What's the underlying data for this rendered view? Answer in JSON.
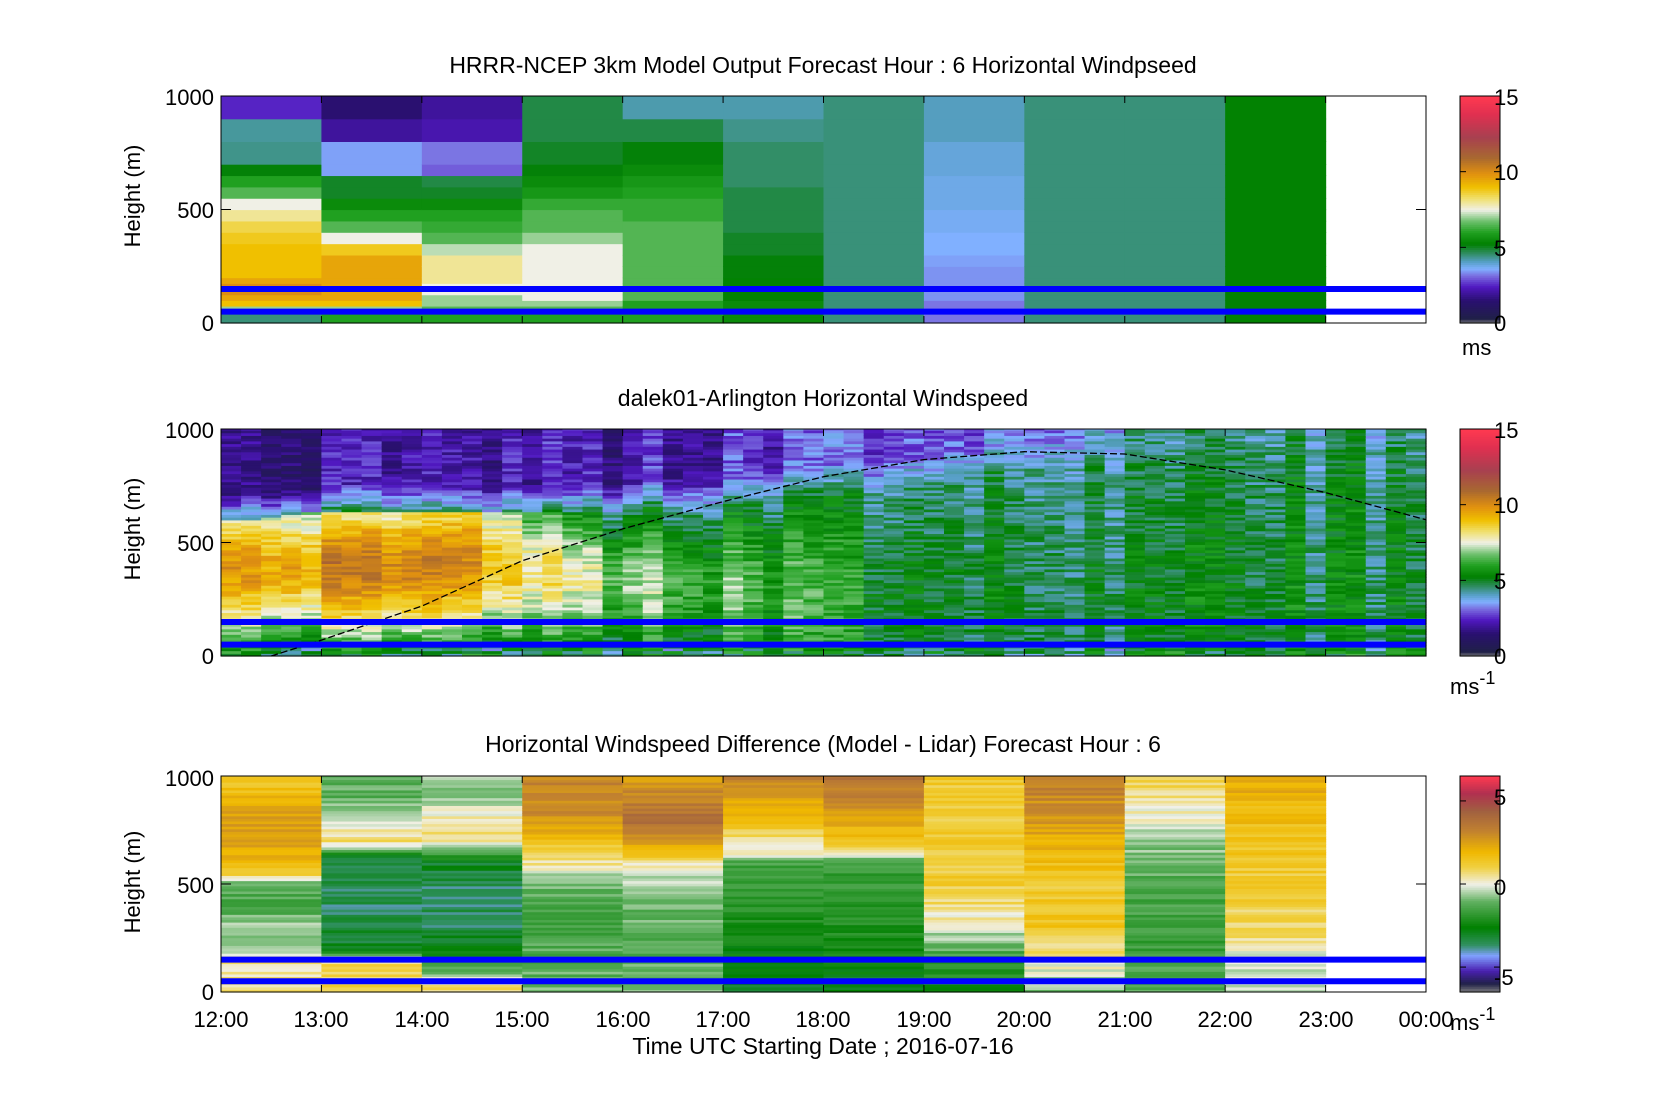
{
  "figure": {
    "xlabel": "Time UTC  Starting Date ; 2016-07-16",
    "x_ticks": [
      "12:00",
      "13:00",
      "14:00",
      "15:00",
      "16:00",
      "17:00",
      "18:00",
      "19:00",
      "20:00",
      "21:00",
      "22:00",
      "23:00",
      "00:00"
    ]
  },
  "colors": {
    "reference_lines": "#0000ff",
    "axes": "#000000",
    "background": "#ffffff"
  },
  "chart_data": [
    {
      "type": "heatmap",
      "title": "HRRR-NCEP 3km Model Output   Forecast Hour : 6 Horizontal Windpseed",
      "ylabel": "Height (m)",
      "xlabel": "",
      "x_ticks": [
        "12:00",
        "13:00",
        "14:00",
        "15:00",
        "16:00",
        "17:00",
        "18:00",
        "19:00",
        "20:00",
        "21:00",
        "22:00",
        "23:00",
        "00:00"
      ],
      "ylim": [
        0,
        1000
      ],
      "y_ticks": [
        "0",
        "500",
        "1000"
      ],
      "colorbar": {
        "ticks": [
          "0",
          "5",
          "10",
          "15"
        ],
        "range": [
          0,
          15
        ],
        "unit": "ms",
        "unit_sup": ""
      },
      "reference_lines_m": [
        150,
        50
      ],
      "height_levels_m": [
        0,
        25,
        50,
        75,
        100,
        125,
        150,
        175,
        200,
        250,
        300,
        350,
        400,
        450,
        500,
        550,
        600,
        650,
        700,
        800,
        900,
        1000
      ],
      "columns": [
        {
          "start": "12:00",
          "end": "13:00",
          "speeds": [
            4.5,
            4.5,
            7,
            9,
            9.5,
            10,
            10,
            9.5,
            9,
            9,
            9,
            8.8,
            8.5,
            8,
            7.5,
            6.5,
            6,
            5.2,
            4.4,
            4.3,
            2.5,
            2.8
          ]
        },
        {
          "start": "13:00",
          "end": "14:00",
          "speeds": [
            6,
            6,
            7,
            9,
            9.5,
            9.5,
            9.5,
            9.5,
            9.5,
            9.5,
            8.8,
            7.5,
            6.5,
            6,
            5.5,
            5,
            5,
            3.5,
            3.5,
            2,
            1.5,
            1.2
          ]
        },
        {
          "start": "14:00",
          "end": "15:00",
          "speeds": [
            6,
            6,
            6.5,
            7,
            7,
            7.5,
            7.5,
            8,
            8,
            8,
            7.2,
            6.5,
            6.2,
            6,
            5.5,
            5,
            4.8,
            3,
            3.2,
            2.2,
            2,
            1.8
          ]
        },
        {
          "start": "15:00",
          "end": "16:00",
          "speeds": [
            6,
            6,
            6.5,
            7,
            7.5,
            7.5,
            7.5,
            7.5,
            7.5,
            7.5,
            7.5,
            7,
            6.5,
            6.5,
            6.2,
            5.8,
            5.5,
            5.2,
            5,
            4.8,
            4.8,
            4.8
          ]
        },
        {
          "start": "16:00",
          "end": "17:00",
          "speeds": [
            6,
            6,
            6,
            6,
            6.5,
            6.5,
            6.5,
            6.5,
            6.5,
            6.5,
            6.5,
            6.5,
            6.5,
            6.2,
            6.2,
            6,
            5.8,
            5.5,
            5.2,
            4.8,
            4.2,
            4.2
          ]
        },
        {
          "start": "17:00",
          "end": "18:00",
          "speeds": [
            5.5,
            5.5,
            5.5,
            5.5,
            5.3,
            5.3,
            5.3,
            5.3,
            5.2,
            5.2,
            5,
            5,
            4.8,
            4.8,
            4.8,
            4.8,
            4.6,
            4.6,
            4.6,
            4.4,
            4.2,
            4.2
          ]
        },
        {
          "start": "18:00",
          "end": "19:00",
          "speeds": [
            4.5,
            4.5,
            4.5,
            4.5,
            4.5,
            4.5,
            4.5,
            4.5,
            4.5,
            4.5,
            4.5,
            4.5,
            4.5,
            4.5,
            4.5,
            4.5,
            4.5,
            4.5,
            4.5,
            4.5,
            4.5,
            4.5
          ]
        },
        {
          "start": "19:00",
          "end": "20:00",
          "speeds": [
            3.2,
            3.2,
            3.2,
            3.2,
            3.4,
            3.4,
            3.4,
            3.4,
            3.4,
            3.5,
            3.6,
            3.6,
            3.7,
            3.7,
            3.8,
            3.8,
            3.8,
            3.9,
            3.9,
            4.1,
            4.1,
            4.1
          ]
        },
        {
          "start": "20:00",
          "end": "21:00",
          "speeds": [
            4.5,
            4.5,
            4.5,
            4.5,
            4.5,
            4.5,
            4.5,
            4.5,
            4.5,
            4.5,
            4.5,
            4.5,
            4.5,
            4.5,
            4.5,
            4.5,
            4.5,
            4.5,
            4.5,
            4.5,
            4.5,
            4.5
          ]
        },
        {
          "start": "21:00",
          "end": "22:00",
          "speeds": [
            4.5,
            4.5,
            4.5,
            4.5,
            4.5,
            4.5,
            4.5,
            4.5,
            4.5,
            4.5,
            4.5,
            4.5,
            4.5,
            4.5,
            4.5,
            4.5,
            4.5,
            4.5,
            4.5,
            4.5,
            4.5,
            4.5
          ]
        },
        {
          "start": "22:00",
          "end": "23:00",
          "speeds": [
            5.3,
            5.3,
            5.3,
            5.3,
            5.3,
            5.3,
            5.3,
            5.3,
            5.3,
            5.3,
            5.3,
            5.3,
            5.3,
            5.3,
            5.3,
            5.3,
            5.3,
            5.3,
            5.3,
            5.3,
            5.3,
            5.3
          ]
        }
      ]
    },
    {
      "type": "heatmap",
      "title": "dalek01-Arlington  Horizontal Windspeed",
      "ylabel": "Height (m)",
      "xlabel": "",
      "x_ticks": [
        "12:00",
        "13:00",
        "14:00",
        "15:00",
        "16:00",
        "17:00",
        "18:00",
        "19:00",
        "20:00",
        "21:00",
        "22:00",
        "23:00",
        "00:00"
      ],
      "ylim": [
        0,
        1000
      ],
      "y_ticks": [
        "0",
        "500",
        "1000"
      ],
      "colorbar": {
        "ticks": [
          "0",
          "5",
          "10",
          "15"
        ],
        "range": [
          0,
          15
        ],
        "unit": "ms",
        "unit_sup": "-1"
      },
      "reference_lines_m": [
        150,
        50
      ],
      "data_end_hour": 23.85,
      "column_width_h": 0.2,
      "row_height_m": 12,
      "jet_core_m": [
        [
          12,
          390
        ],
        [
          13,
          390
        ],
        [
          14,
          400
        ],
        [
          14.5,
          430
        ],
        [
          15,
          380
        ],
        [
          16,
          320
        ],
        [
          17,
          300
        ],
        [
          18,
          260
        ],
        [
          19,
          230
        ],
        [
          20,
          210
        ],
        [
          21,
          200
        ],
        [
          22,
          210
        ],
        [
          23,
          220
        ],
        [
          24,
          230
        ]
      ],
      "jet_peak_ms": [
        [
          12,
          9.5
        ],
        [
          13,
          10
        ],
        [
          14,
          10
        ],
        [
          14.5,
          10
        ],
        [
          15,
          8.2
        ],
        [
          16,
          7
        ],
        [
          17,
          6.5
        ],
        [
          18,
          5.8
        ],
        [
          19,
          5.2
        ],
        [
          20,
          5
        ],
        [
          21,
          5
        ],
        [
          22,
          5
        ],
        [
          23,
          5
        ],
        [
          24,
          5
        ]
      ],
      "top_of_mixed_layer_m": [
        [
          12,
          590
        ],
        [
          13,
          640
        ],
        [
          14,
          640
        ],
        [
          15,
          630
        ],
        [
          16,
          650
        ],
        [
          17,
          680
        ],
        [
          18,
          720
        ],
        [
          19,
          780
        ],
        [
          20,
          830
        ],
        [
          21,
          900
        ],
        [
          22,
          920
        ],
        [
          23,
          930
        ],
        [
          24,
          930
        ]
      ],
      "aloft_ms": [
        [
          12,
          1.6
        ],
        [
          13,
          1.8
        ],
        [
          14,
          2
        ],
        [
          15,
          2
        ],
        [
          16,
          2.2
        ],
        [
          17,
          2.4
        ],
        [
          18,
          2.6
        ],
        [
          19,
          3
        ],
        [
          20,
          3.3
        ],
        [
          21,
          4
        ],
        [
          22,
          4.3
        ],
        [
          23,
          4.5
        ],
        [
          24,
          4.5
        ]
      ],
      "boundary_layer_curve": [
        [
          12.5,
          0
        ],
        [
          13,
          70
        ],
        [
          14,
          220
        ],
        [
          15,
          420
        ],
        [
          16,
          560
        ],
        [
          17,
          680
        ],
        [
          18,
          790
        ],
        [
          19,
          865
        ],
        [
          20,
          900
        ],
        [
          21,
          890
        ],
        [
          22,
          820
        ],
        [
          23,
          720
        ],
        [
          24,
          600
        ]
      ]
    },
    {
      "type": "heatmap",
      "title": "Horizontal Windspeed Difference (Model - Lidar) Forecast Hour : 6",
      "ylabel": "Height (m)",
      "xlabel": "Time UTC  Starting Date ; 2016-07-16",
      "x_ticks": [
        "12:00",
        "13:00",
        "14:00",
        "15:00",
        "16:00",
        "17:00",
        "18:00",
        "19:00",
        "20:00",
        "21:00",
        "22:00",
        "23:00",
        "00:00"
      ],
      "ylim": [
        0,
        1000
      ],
      "y_ticks": [
        "0",
        "500",
        "1000"
      ],
      "colorbar": {
        "ticks": [
          "-5",
          "0",
          "5"
        ],
        "range": [
          -6.5,
          6.5
        ],
        "unit": "ms",
        "unit_sup": "-1"
      },
      "reference_lines_m": [
        150,
        50
      ],
      "row_height_m": 12,
      "columns": [
        {
          "start": "12:00",
          "end": "13:00",
          "anchors": [
            [
              0,
              0.5
            ],
            [
              120,
              0.5
            ],
            [
              150,
              0.8
            ],
            [
              200,
              -0.5
            ],
            [
              300,
              -0.5
            ],
            [
              400,
              -1.5
            ],
            [
              500,
              -1.2
            ],
            [
              550,
              1.2
            ],
            [
              700,
              2.8
            ],
            [
              850,
              2.2
            ],
            [
              1000,
              1.3
            ]
          ]
        },
        {
          "start": "13:00",
          "end": "14:00",
          "anchors": [
            [
              0,
              1
            ],
            [
              150,
              0.8
            ],
            [
              200,
              -3
            ],
            [
              350,
              -3.5
            ],
            [
              500,
              -3.5
            ],
            [
              620,
              -3.2
            ],
            [
              700,
              0.8
            ],
            [
              800,
              -0.3
            ],
            [
              900,
              -1.2
            ],
            [
              1000,
              -1
            ]
          ]
        },
        {
          "start": "14:00",
          "end": "15:00",
          "anchors": [
            [
              0,
              1
            ],
            [
              150,
              -2
            ],
            [
              300,
              -3.5
            ],
            [
              500,
              -3.5
            ],
            [
              600,
              -3
            ],
            [
              700,
              0.5
            ],
            [
              800,
              0.5
            ],
            [
              900,
              -0.6
            ],
            [
              1000,
              -0.6
            ]
          ]
        },
        {
          "start": "15:00",
          "end": "16:00",
          "anchors": [
            [
              0,
              -1
            ],
            [
              150,
              -1.2
            ],
            [
              300,
              -1.5
            ],
            [
              500,
              -1
            ],
            [
              600,
              0.5
            ],
            [
              700,
              1.5
            ],
            [
              800,
              2.8
            ],
            [
              1000,
              3.1
            ]
          ]
        },
        {
          "start": "16:00",
          "end": "17:00",
          "anchors": [
            [
              0,
              -1
            ],
            [
              200,
              -1.2
            ],
            [
              400,
              -1
            ],
            [
              500,
              -0.6
            ],
            [
              600,
              0.5
            ],
            [
              700,
              3
            ],
            [
              800,
              4
            ],
            [
              900,
              3.2
            ],
            [
              1000,
              2.3
            ]
          ]
        },
        {
          "start": "17:00",
          "end": "18:00",
          "anchors": [
            [
              0,
              -3
            ],
            [
              300,
              -2.3
            ],
            [
              600,
              -1.5
            ],
            [
              650,
              0.2
            ],
            [
              750,
              1
            ],
            [
              850,
              2.2
            ],
            [
              1000,
              3.2
            ]
          ]
        },
        {
          "start": "18:00",
          "end": "19:00",
          "anchors": [
            [
              0,
              -3
            ],
            [
              200,
              -2.3
            ],
            [
              400,
              -2
            ],
            [
              600,
              -1.5
            ],
            [
              700,
              1.5
            ],
            [
              850,
              2.8
            ],
            [
              1000,
              3.8
            ]
          ]
        },
        {
          "start": "19:00",
          "end": "20:00",
          "anchors": [
            [
              0,
              -2.5
            ],
            [
              150,
              -1.8
            ],
            [
              250,
              -0.6
            ],
            [
              350,
              0.3
            ],
            [
              500,
              1.2
            ],
            [
              700,
              1.3
            ],
            [
              900,
              1.2
            ],
            [
              1000,
              1.3
            ]
          ]
        },
        {
          "start": "20:00",
          "end": "21:00",
          "anchors": [
            [
              0,
              -0.8
            ],
            [
              150,
              0.3
            ],
            [
              300,
              1.5
            ],
            [
              500,
              1.3
            ],
            [
              700,
              2.2
            ],
            [
              900,
              3
            ],
            [
              1000,
              3.3
            ]
          ]
        },
        {
          "start": "21:00",
          "end": "22:00",
          "anchors": [
            [
              0,
              -1.2
            ],
            [
              200,
              -1.6
            ],
            [
              500,
              -1.3
            ],
            [
              700,
              -0.6
            ],
            [
              850,
              0.3
            ],
            [
              950,
              0.8
            ],
            [
              1000,
              1
            ]
          ]
        },
        {
          "start": "22:00",
          "end": "23:00",
          "anchors": [
            [
              0,
              -0.3
            ],
            [
              150,
              -0.4
            ],
            [
              200,
              0.3
            ],
            [
              300,
              0.8
            ],
            [
              500,
              1.2
            ],
            [
              700,
              1.5
            ],
            [
              900,
              2
            ],
            [
              1000,
              2.3
            ]
          ]
        }
      ]
    }
  ]
}
